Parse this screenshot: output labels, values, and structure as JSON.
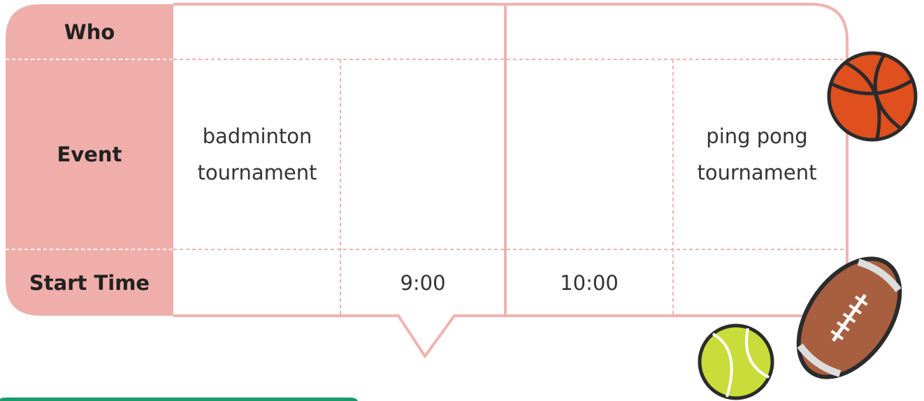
{
  "table": {
    "row_headers": [
      "Who",
      "Event",
      "Start Time"
    ],
    "events": [
      "badminton tournament",
      "ping pong tournament"
    ],
    "start_times": [
      "9:00",
      "10:00"
    ]
  }
}
